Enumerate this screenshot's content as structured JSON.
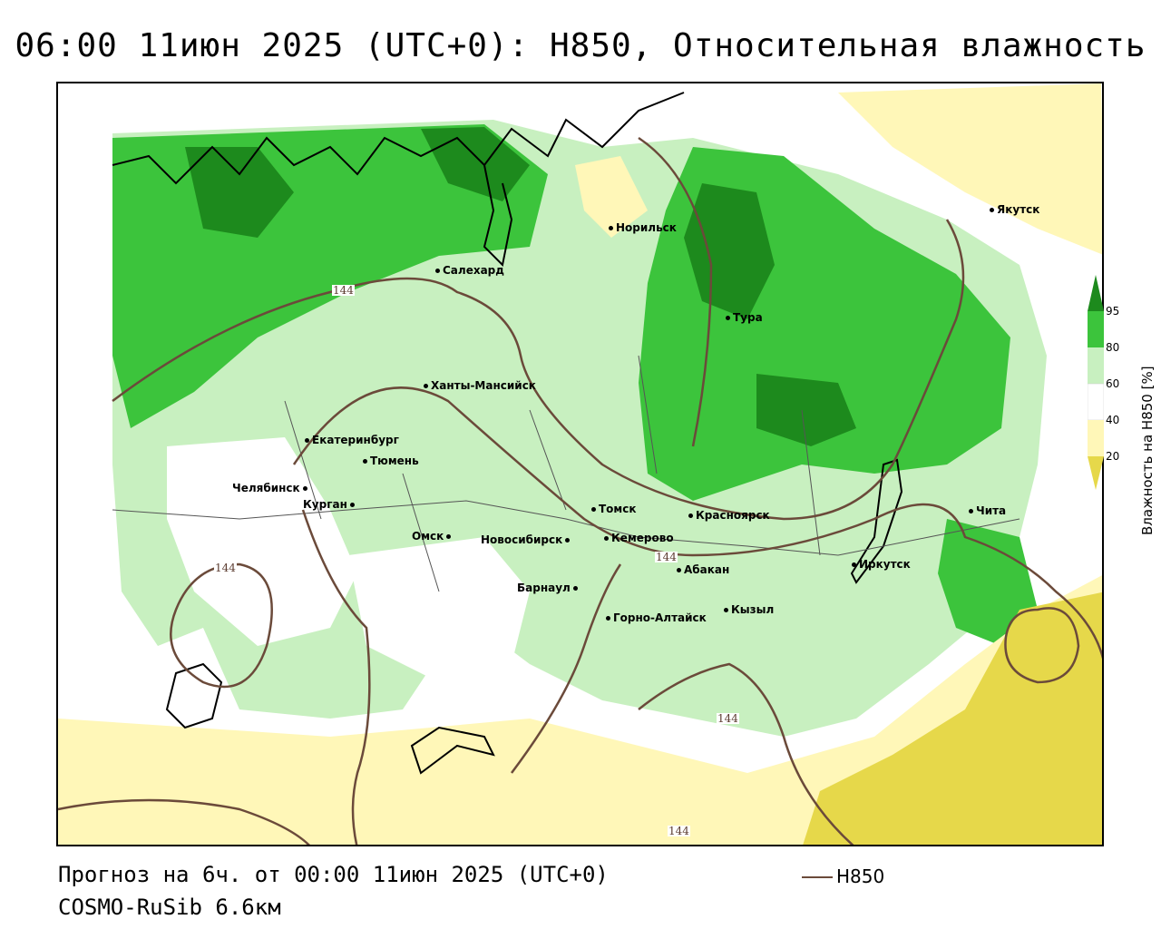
{
  "title": "06:00 11июн 2025 (UTC+0): H850, Относительная влажность",
  "footer": {
    "forecast": "Прогноз на 6ч. от 00:00 11июн 2025 (UTC+0)",
    "model": "COSMO-RuSib 6.6км",
    "legend_label": "H850"
  },
  "colorbar": {
    "title": "Влажность на H850 [%]",
    "ticks": [
      "95",
      "80",
      "60",
      "40",
      "20"
    ],
    "colors": {
      "above_95": "#1d8a1d",
      "80_95": "#3cc43c",
      "60_80": "#c8f0c0",
      "40_60": "#ffffff",
      "20_40": "#fff7b8",
      "below_20": "#e6d84a"
    }
  },
  "contour_color": "#6b4a3a",
  "contour_labels": [
    "144",
    "144",
    "144",
    "144",
    "144"
  ],
  "cities": [
    "Норильск",
    "Якутск",
    "Салехард",
    "Тура",
    "Ханты-Мансийск",
    "Екатеринбург",
    "Тюмень",
    "Челябинск",
    "Курган",
    "Омск",
    "Новосибирск",
    "Томск",
    "Кемерово",
    "Красноярск",
    "Абакан",
    "Барнаул",
    "Горно-Алтайск",
    "Кызыл",
    "Иркутск",
    "Чита"
  ]
}
